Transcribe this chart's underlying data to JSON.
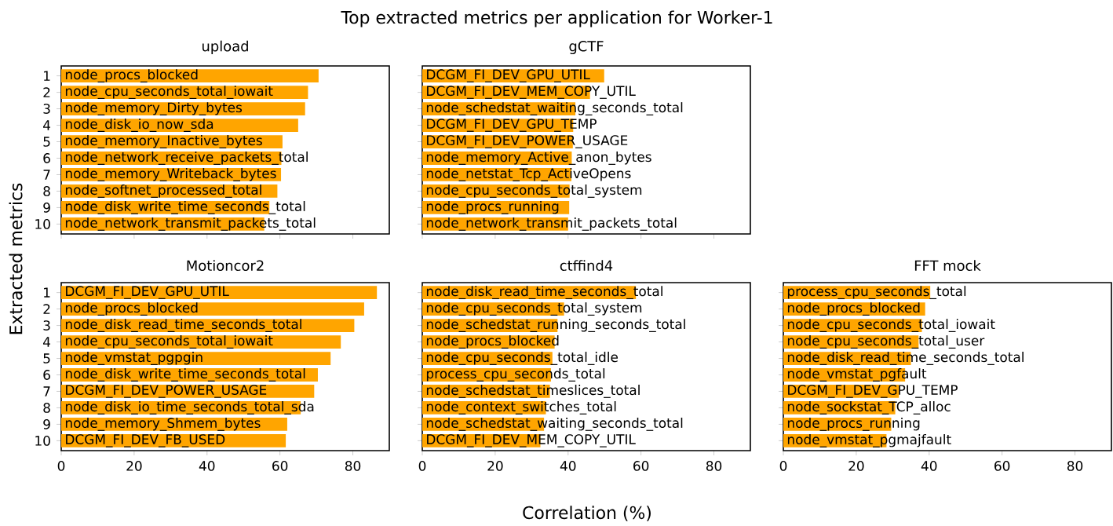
{
  "chart_data": [
    {
      "type": "other",
      "title": "Top extracted metrics per application for Worker-1",
      "xlabel": "Correlation (%)",
      "ylabel": "Extracted metrics"
    },
    {
      "type": "bar",
      "orientation": "horizontal",
      "title": "upload",
      "categories": [
        "1",
        "2",
        "3",
        "4",
        "5",
        "6",
        "7",
        "8",
        "9",
        "10"
      ],
      "color": "#ffa500",
      "xlim": [
        0,
        90
      ],
      "xticks": [
        0,
        20,
        40,
        60,
        80
      ],
      "tick_labels": "y",
      "values": [
        70.6,
        67.7,
        66.9,
        65.0,
        60.7,
        60.4,
        60.3,
        59.3,
        57.1,
        55.7
      ],
      "value_labels": [
        "node_procs_blocked",
        "node_cpu_seconds_total_iowait",
        "node_memory_Dirty_bytes",
        "node_disk_io_now_sda",
        "node_memory_Inactive_bytes",
        "node_network_receive_packets_total",
        "node_memory_Writeback_bytes",
        "node_softnet_processed_total",
        "node_disk_write_time_seconds_total",
        "node_network_transmit_packets_total"
      ]
    },
    {
      "type": "bar",
      "orientation": "horizontal",
      "title": "gCTF",
      "categories": [
        "1",
        "2",
        "3",
        "4",
        "5",
        "6",
        "7",
        "8",
        "9",
        "10"
      ],
      "color": "#ffa500",
      "xlim": [
        0,
        90
      ],
      "xticks": [
        0,
        20,
        40,
        60,
        80
      ],
      "tick_labels": false,
      "values": [
        49.9,
        46.0,
        42.0,
        41.4,
        41.3,
        41.0,
        40.9,
        40.4,
        40.3,
        40.0
      ],
      "value_labels": [
        "DCGM_FI_DEV_GPU_UTIL",
        "DCGM_FI_DEV_MEM_COPY_UTIL",
        "node_schedstat_waiting_seconds_total",
        "DCGM_FI_DEV_GPU_TEMP",
        "DCGM_FI_DEV_POWER_USAGE",
        "node_memory_Active_anon_bytes",
        "node_netstat_Tcp_ActiveOpens",
        "node_cpu_seconds_total_system",
        "node_procs_running",
        "node_network_transmit_packets_total"
      ]
    },
    {
      "type": "bar",
      "orientation": "horizontal",
      "title": "Motioncor2",
      "categories": [
        "1",
        "2",
        "3",
        "4",
        "5",
        "6",
        "7",
        "8",
        "9",
        "10"
      ],
      "color": "#ffa500",
      "xlim": [
        0,
        90
      ],
      "xticks": [
        0,
        20,
        40,
        60,
        80
      ],
      "values": [
        86.6,
        83.1,
        80.4,
        76.7,
        73.9,
        70.4,
        69.4,
        65.7,
        62.0,
        61.6
      ],
      "value_labels": [
        "DCGM_FI_DEV_GPU_UTIL",
        "node_procs_blocked",
        "node_disk_read_time_seconds_total",
        "node_cpu_seconds_total_iowait",
        "node_vmstat_pgpgin",
        "node_disk_write_time_seconds_total",
        "DCGM_FI_DEV_POWER_USAGE",
        "node_disk_io_time_seconds_total_sda",
        "node_memory_Shmem_bytes",
        "DCGM_FI_DEV_FB_USED"
      ]
    },
    {
      "type": "bar",
      "orientation": "horizontal",
      "title": "ctffind4",
      "categories": [
        "1",
        "2",
        "3",
        "4",
        "5",
        "6",
        "7",
        "8",
        "9",
        "10"
      ],
      "color": "#ffa500",
      "xlim": [
        0,
        90
      ],
      "xticks": [
        0,
        20,
        40,
        60,
        80
      ],
      "tick_labels": "x",
      "values": [
        58.6,
        38.9,
        37.1,
        36.3,
        35.7,
        35.3,
        35.0,
        33.9,
        33.4,
        32.4
      ],
      "value_labels": [
        "node_disk_read_time_seconds_total",
        "node_cpu_seconds_total_system",
        "node_schedstat_running_seconds_total",
        "node_procs_blocked",
        "node_cpu_seconds_total_idle",
        "process_cpu_seconds_total",
        "node_schedstat_timeslices_total",
        "node_context_switches_total",
        "node_schedstat_waiting_seconds_total",
        "DCGM_FI_DEV_MEM_COPY_UTIL"
      ]
    },
    {
      "type": "bar",
      "orientation": "horizontal",
      "title": "FFT mock",
      "categories": [
        "1",
        "2",
        "3",
        "4",
        "5",
        "6",
        "7",
        "8",
        "9",
        "10"
      ],
      "color": "#ffa500",
      "xlim": [
        0,
        90
      ],
      "xticks": [
        0,
        20,
        40,
        60,
        80
      ],
      "tick_labels": "x",
      "values": [
        40.3,
        38.9,
        38.0,
        37.1,
        35.0,
        33.4,
        31.7,
        30.7,
        29.6,
        28.3
      ],
      "value_labels": [
        "process_cpu_seconds_total",
        "node_procs_blocked",
        "node_cpu_seconds_total_iowait",
        "node_cpu_seconds_total_user",
        "node_disk_read_time_seconds_total",
        "node_vmstat_pgfault",
        "DCGM_FI_DEV_GPU_TEMP",
        "node_sockstat_TCP_alloc",
        "node_procs_running",
        "node_vmstat_pgmajfault"
      ]
    }
  ]
}
